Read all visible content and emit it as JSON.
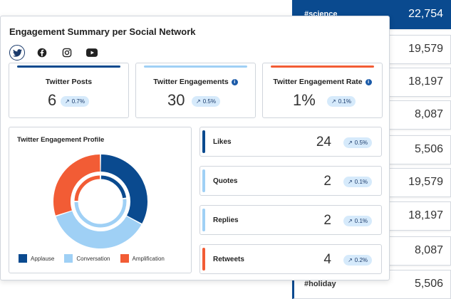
{
  "hashtags": [
    {
      "name": "#science",
      "count": "22,754",
      "active": true
    },
    {
      "name": "",
      "count": "19,579",
      "active": false
    },
    {
      "name": "",
      "count": "18,197",
      "active": false
    },
    {
      "name": "",
      "count": "8,087",
      "active": false
    },
    {
      "name": "",
      "count": "5,506",
      "active": false
    },
    {
      "name": "",
      "count": "19,579",
      "active": false
    },
    {
      "name": "",
      "count": "18,197",
      "active": false
    },
    {
      "name": "",
      "count": "8,087",
      "active": false
    },
    {
      "name": "#holiday",
      "count": "5,506",
      "active": false
    }
  ],
  "panel": {
    "title": "Engagement Summary per Social Network",
    "networks": [
      {
        "icon": "twitter-icon",
        "active": true
      },
      {
        "icon": "facebook-icon",
        "active": false
      },
      {
        "icon": "instagram-icon",
        "active": false
      },
      {
        "icon": "youtube-icon",
        "active": false
      }
    ]
  },
  "metrics": [
    {
      "label": "Twitter Posts",
      "value": "6",
      "change": "0.7%",
      "color": "#0a4a8f",
      "info": false
    },
    {
      "label": "Twitter Engagements",
      "value": "30",
      "change": "0.5%",
      "color": "#9fd0f5",
      "info": true
    },
    {
      "label": "Twitter Engagement Rate",
      "value": "1%",
      "change": "0.1%",
      "color": "#f25c35",
      "info": true
    }
  ],
  "profile": {
    "title": "Twitter Engagement Profile",
    "legend": [
      {
        "label": "Applause",
        "color": "#0a4a8f"
      },
      {
        "label": "Conversation",
        "color": "#9fd0f5"
      },
      {
        "label": "Amplification",
        "color": "#f25c35"
      }
    ],
    "outer_ring": [
      {
        "name": "Applause",
        "fraction": 0.33,
        "color": "#0a4a8f"
      },
      {
        "name": "Conversation",
        "fraction": 0.37,
        "color": "#9fd0f5"
      },
      {
        "name": "Amplification",
        "fraction": 0.3,
        "color": "#f25c35"
      }
    ],
    "inner_ring": [
      {
        "name": "Applause",
        "fraction": 0.23,
        "color": "#0a4a8f"
      },
      {
        "name": "Conversation",
        "fraction": 0.52,
        "color": "#9fd0f5"
      },
      {
        "name": "Amplification",
        "fraction": 0.25,
        "color": "#f25c35"
      }
    ]
  },
  "stats": [
    {
      "label": "Likes",
      "value": "24",
      "change": "0.5%",
      "color": "#0a4a8f"
    },
    {
      "label": "Quotes",
      "value": "2",
      "change": "0.1%",
      "color": "#9fd0f5"
    },
    {
      "label": "Replies",
      "value": "2",
      "change": "0.1%",
      "color": "#9fd0f5"
    },
    {
      "label": "Retweets",
      "value": "4",
      "change": "0.2%",
      "color": "#f25c35"
    }
  ]
}
